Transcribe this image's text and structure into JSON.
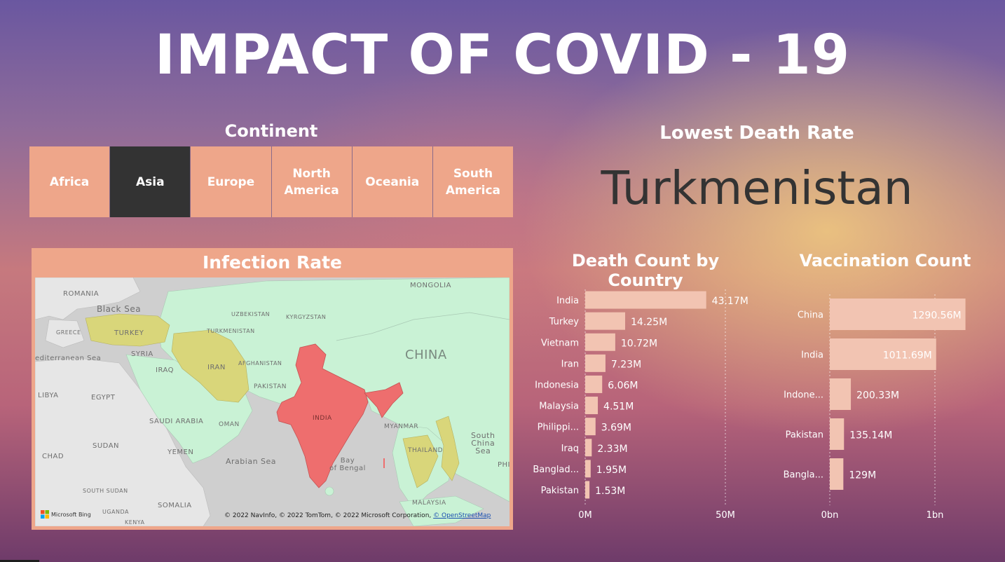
{
  "header": {
    "title": "IMPACT OF COVID - 19"
  },
  "continent_slicer": {
    "label": "Continent",
    "options": [
      {
        "label": "Africa",
        "selected": false
      },
      {
        "label": "Asia",
        "selected": true
      },
      {
        "label": "Europe",
        "selected": false
      },
      {
        "label": "North\nAmerica",
        "selected": false
      },
      {
        "label": "Oceania",
        "selected": false
      },
      {
        "label": "South\nAmerica",
        "selected": false
      }
    ]
  },
  "kpi": {
    "label": "Lowest Death Rate",
    "value": "Turkmenistan"
  },
  "map": {
    "title": "Infection Rate",
    "labels": {
      "romania": "ROMANIA",
      "black_sea": "Black Sea",
      "greece": "GREECE",
      "turkey": "TURKEY",
      "mongolia": "MONGOLIA",
      "uzbekistan": "UZBEKISTAN",
      "kyrgyzstan": "KYRGYZSTAN",
      "turkmenistan": "TURKMENISTAN",
      "mediterranean": "editerranean Sea",
      "syria": "SYRIA",
      "iraq": "IRAQ",
      "iran": "IRAN",
      "afghanistan": "AFGHANISTAN",
      "china": "CHINA",
      "libya": "LIBYA",
      "egypt": "EGYPT",
      "pakistan": "PAKISTAN",
      "india": "INDIA",
      "saudi": "SAUDI ARABIA",
      "oman": "OMAN",
      "myanmar": "MYANMAR",
      "sudan": "SUDAN",
      "yemen": "YEMEN",
      "thailand": "THAILAND",
      "south_china_sea": "South\nChina\nSea",
      "chad": "CHAD",
      "arabian_sea": "Arabian Sea",
      "bay_of_bengal": "Bay\nof Bengal",
      "phi": "PHI",
      "south_sudan": "SOUTH SUDAN",
      "somalia": "SOMALIA",
      "malaysia": "MALAYSIA",
      "uganda": "UGANDA",
      "kenya": "KENYA"
    },
    "logo_text": "Microsoft Bing",
    "attribution": "© 2022 NavInfo, © 2022 TomTom, © 2022 Microsoft Corporation,",
    "attribution_link": "© OpenStreetMap",
    "colors": {
      "land_green": "#c9f2d5",
      "highlight_red": "#ee6e6e",
      "medium_yellow": "#d9d67a",
      "other_land": "#e8e8e8",
      "water": "#cfcfcf"
    }
  },
  "chart_data": [
    {
      "type": "bar",
      "title": "Death Count by Country",
      "orientation": "horizontal",
      "categories": [
        "India",
        "Turkey",
        "Vietnam",
        "Iran",
        "Indonesia",
        "Malaysia",
        "Philippi...",
        "Iraq",
        "Banglad...",
        "Pakistan"
      ],
      "values": [
        43.17,
        14.25,
        10.72,
        7.23,
        6.06,
        4.51,
        3.69,
        2.33,
        1.95,
        1.53
      ],
      "value_labels": [
        "43.17M",
        "14.25M",
        "10.72M",
        "7.23M",
        "6.06M",
        "4.51M",
        "3.69M",
        "2.33M",
        "1.95M",
        "1.53M"
      ],
      "unit": "M",
      "xlim": [
        0,
        50
      ],
      "x_ticks": [
        "0M",
        "50M"
      ],
      "bar_color": "#f2c4b2"
    },
    {
      "type": "bar",
      "title": "Vaccination Count",
      "orientation": "horizontal",
      "categories": [
        "China",
        "India",
        "Indone...",
        "Pakistan",
        "Bangla..."
      ],
      "values": [
        1290.56,
        1011.69,
        200.33,
        135.14,
        129
      ],
      "value_labels": [
        "1290.56M",
        "1011.69M",
        "200.33M",
        "135.14M",
        "129M"
      ],
      "unit": "M",
      "xlim": [
        0,
        1000
      ],
      "x_ticks": [
        "0bn",
        "1bn"
      ],
      "bar_color": "#f2c4b2"
    }
  ]
}
